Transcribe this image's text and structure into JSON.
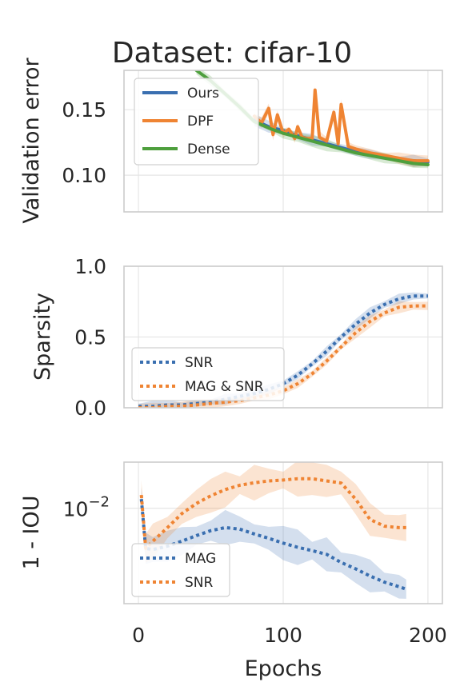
{
  "chart_data": [
    {
      "type": "line",
      "title": "Dataset: cifar-10",
      "xlabel": "",
      "ylabel": "Validation error",
      "xlim": [
        -10,
        210
      ],
      "ylim": [
        0.072,
        0.18
      ],
      "xticks": [
        0,
        100,
        200
      ],
      "show_xtick_labels": false,
      "yticks": [
        0.1,
        0.15
      ],
      "ytick_labels": [
        "0.10",
        "0.15"
      ],
      "grid": true,
      "legend": "upper-left",
      "colors": {
        "Ours": "#3a6fb0",
        "DPF": "#ef8433",
        "Dense": "#4e9f3d"
      },
      "series": [
        {
          "name": "Ours",
          "style": "solid",
          "x": [
            80,
            90,
            100,
            110,
            120,
            130,
            140,
            150,
            160,
            170,
            180,
            190,
            200
          ],
          "y": [
            0.142,
            0.137,
            0.134,
            0.13,
            0.127,
            0.124,
            0.121,
            0.118,
            0.116,
            0.114,
            0.112,
            0.111,
            0.11
          ]
        },
        {
          "name": "DPF",
          "style": "solid",
          "x": [
            80,
            85,
            90,
            93,
            96,
            100,
            104,
            108,
            110,
            113,
            116,
            120,
            122,
            125,
            130,
            135,
            138,
            140,
            145,
            150,
            160,
            170,
            180,
            190,
            200
          ],
          "y": [
            0.145,
            0.14,
            0.151,
            0.131,
            0.146,
            0.132,
            0.135,
            0.128,
            0.137,
            0.129,
            0.128,
            0.128,
            0.165,
            0.129,
            0.126,
            0.148,
            0.124,
            0.154,
            0.122,
            0.12,
            0.117,
            0.115,
            0.113,
            0.111,
            0.111
          ]
        },
        {
          "name": "Dense",
          "style": "solid",
          "x": [
            40,
            50,
            60,
            70,
            80,
            90,
            100,
            110,
            120,
            130,
            140,
            150,
            160,
            170,
            180,
            190,
            200
          ],
          "y": [
            0.18,
            0.172,
            0.162,
            0.152,
            0.141,
            0.136,
            0.132,
            0.129,
            0.126,
            0.123,
            0.12,
            0.117,
            0.115,
            0.113,
            0.111,
            0.109,
            0.108
          ]
        }
      ]
    },
    {
      "type": "line",
      "title": "",
      "xlabel": "",
      "ylabel": "Sparsity",
      "xlim": [
        -10,
        210
      ],
      "ylim": [
        0.0,
        1.0
      ],
      "xticks": [
        0,
        100,
        200
      ],
      "show_xtick_labels": false,
      "yticks": [
        0.0,
        0.5,
        1.0
      ],
      "ytick_labels": [
        "0.0",
        "0.5",
        "1.0"
      ],
      "grid": true,
      "legend": "lower-left",
      "colors": {
        "SNR": "#3a6fb0",
        "MAG & SNR": "#ef8433"
      },
      "series": [
        {
          "name": "SNR",
          "style": "dotted",
          "x": [
            0,
            10,
            20,
            30,
            40,
            50,
            60,
            70,
            80,
            90,
            100,
            110,
            120,
            130,
            140,
            150,
            160,
            170,
            180,
            190,
            200
          ],
          "y": [
            0.01,
            0.01,
            0.02,
            0.02,
            0.03,
            0.04,
            0.06,
            0.08,
            0.1,
            0.13,
            0.17,
            0.23,
            0.31,
            0.4,
            0.5,
            0.59,
            0.67,
            0.73,
            0.77,
            0.79,
            0.79
          ]
        },
        {
          "name": "MAG & SNR",
          "style": "dotted",
          "x": [
            0,
            10,
            20,
            30,
            40,
            50,
            60,
            70,
            80,
            90,
            100,
            110,
            120,
            130,
            140,
            150,
            160,
            170,
            180,
            190,
            200
          ],
          "y": [
            0.0,
            0.0,
            0.01,
            0.01,
            0.02,
            0.03,
            0.04,
            0.05,
            0.07,
            0.09,
            0.12,
            0.17,
            0.24,
            0.33,
            0.43,
            0.53,
            0.61,
            0.67,
            0.71,
            0.72,
            0.72
          ]
        }
      ]
    },
    {
      "type": "line",
      "title": "",
      "xlabel": "Epochs",
      "ylabel": "1 - IOU",
      "xlim": [
        -10,
        210
      ],
      "ylim": [
        0.0015,
        0.025
      ],
      "yscale": "log",
      "xticks": [
        0,
        100,
        200
      ],
      "xtick_labels": [
        "0",
        "100",
        "200"
      ],
      "yticks": [
        0.01
      ],
      "ytick_labels": [
        "10^-2"
      ],
      "grid": true,
      "legend": "lower-left",
      "colors": {
        "MAG": "#3a6fb0",
        "SNR": "#ef8433"
      },
      "series": [
        {
          "name": "MAG",
          "style": "dotted",
          "x": [
            2,
            5,
            10,
            20,
            30,
            40,
            50,
            60,
            70,
            80,
            90,
            100,
            110,
            120,
            130,
            140,
            150,
            160,
            170,
            180,
            185
          ],
          "y": [
            0.012,
            0.0045,
            0.0044,
            0.0047,
            0.0052,
            0.0058,
            0.0064,
            0.0068,
            0.0066,
            0.006,
            0.0055,
            0.005,
            0.0046,
            0.0043,
            0.004,
            0.0034,
            0.003,
            0.0026,
            0.0023,
            0.0021,
            0.002
          ]
        },
        {
          "name": "SNR",
          "style": "dotted",
          "x": [
            2,
            5,
            10,
            20,
            30,
            40,
            50,
            60,
            70,
            80,
            90,
            100,
            110,
            120,
            130,
            140,
            150,
            160,
            170,
            180,
            185
          ],
          "y": [
            0.013,
            0.0045,
            0.0052,
            0.0068,
            0.009,
            0.011,
            0.0128,
            0.0145,
            0.0158,
            0.0166,
            0.0172,
            0.0175,
            0.018,
            0.018,
            0.0172,
            0.0165,
            0.012,
            0.008,
            0.007,
            0.0068,
            0.0068
          ]
        }
      ]
    }
  ]
}
